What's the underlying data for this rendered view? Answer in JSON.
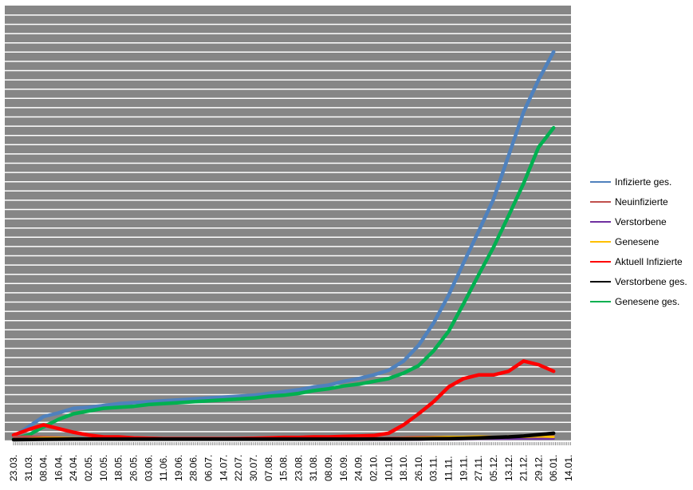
{
  "chart_data": {
    "type": "line",
    "title": "",
    "xlabel": "",
    "ylabel": "",
    "ylim": [
      0,
      47
    ],
    "grid": true,
    "y_tick_labels_shown": false,
    "plot_background": "#868686",
    "grid_color": "#ffffff",
    "legend_position": "right",
    "categories": [
      "23.03.",
      "31.03.",
      "08.04.",
      "16.04.",
      "24.04.",
      "02.05.",
      "10.05.",
      "18.05.",
      "26.05.",
      "03.06.",
      "11.06.",
      "19.06.",
      "28.06.",
      "06.07.",
      "14.07.",
      "22.07.",
      "30.07.",
      "07.08.",
      "15.08.",
      "23.08.",
      "31.08.",
      "08.09.",
      "16.09.",
      "24.09.",
      "02.10.",
      "10.10.",
      "18.10.",
      "26.10.",
      "03.11.",
      "11.11.",
      "19.11.",
      "27.11.",
      "05.12.",
      "13.12.",
      "21.12.",
      "29.12.",
      "06.01.",
      "14.01."
    ],
    "series": [
      {
        "name": "Infizierte ges.",
        "color": "#4F81BD",
        "values": [
          0.3,
          1.4,
          2.5,
          2.9,
          3.4,
          3.5,
          3.7,
          3.9,
          4.0,
          4.1,
          4.2,
          4.3,
          4.4,
          4.5,
          4.6,
          4.7,
          4.8,
          5.0,
          5.2,
          5.4,
          5.7,
          5.9,
          6.3,
          6.6,
          7.0,
          7.5,
          8.5,
          10.2,
          12.6,
          15.6,
          19.1,
          22.5,
          26.0,
          30.7,
          35.4,
          38.9,
          41.9,
          null
        ]
      },
      {
        "name": "Neuinfizierte",
        "color": "#C0504D",
        "values": [
          0.3,
          0.35,
          0.3,
          0.25,
          0.15,
          0.1,
          0.08,
          0.05,
          0.05,
          0.05,
          0.05,
          0.05,
          0.05,
          0.05,
          0.05,
          0.05,
          0.05,
          0.08,
          0.1,
          0.1,
          0.1,
          0.1,
          0.12,
          0.15,
          0.15,
          0.2,
          0.25,
          0.3,
          0.3,
          0.3,
          0.3,
          0.35,
          0.3,
          0.35,
          0.4,
          0.3,
          0.35,
          null
        ]
      },
      {
        "name": "Verstorbene",
        "color": "#7030A0",
        "values": [
          0,
          0.02,
          0.03,
          0.03,
          0.02,
          0.02,
          0.01,
          0.01,
          0.01,
          0,
          0,
          0,
          0,
          0,
          0,
          0,
          0,
          0,
          0,
          0,
          0,
          0,
          0,
          0,
          0,
          0.01,
          0.02,
          0.03,
          0.05,
          0.05,
          0.08,
          0.1,
          0.1,
          0.1,
          0.12,
          0.1,
          0.12,
          null
        ]
      },
      {
        "name": "Genesene",
        "color": "#FFC000",
        "values": [
          0,
          0.1,
          0.2,
          0.2,
          0.15,
          0.1,
          0.08,
          0.05,
          0.05,
          0.04,
          0.03,
          0.03,
          0.03,
          0.03,
          0.03,
          0.03,
          0.03,
          0.05,
          0.05,
          0.06,
          0.06,
          0.07,
          0.08,
          0.1,
          0.1,
          0.12,
          0.15,
          0.2,
          0.25,
          0.3,
          0.3,
          0.35,
          0.3,
          0.35,
          0.3,
          0.35,
          0.3,
          null
        ]
      },
      {
        "name": "Aktuell Infizierte",
        "color": "#FF0000",
        "values": [
          0.5,
          1.1,
          1.6,
          1.2,
          0.8,
          0.5,
          0.3,
          0.3,
          0.2,
          0.15,
          0.1,
          0.1,
          0.1,
          0.1,
          0.1,
          0.12,
          0.15,
          0.2,
          0.25,
          0.25,
          0.3,
          0.3,
          0.35,
          0.4,
          0.45,
          0.7,
          1.6,
          2.8,
          4.1,
          5.7,
          6.6,
          7.0,
          7.0,
          7.4,
          8.5,
          8.1,
          7.4,
          null
        ]
      },
      {
        "name": "Verstorbene ges.",
        "color": "#000000",
        "values": [
          0,
          0.02,
          0.04,
          0.05,
          0.06,
          0.06,
          0.06,
          0.06,
          0.06,
          0.06,
          0.06,
          0.06,
          0.06,
          0.06,
          0.06,
          0.06,
          0.07,
          0.07,
          0.07,
          0.07,
          0.07,
          0.07,
          0.07,
          0.07,
          0.08,
          0.08,
          0.08,
          0.09,
          0.1,
          0.12,
          0.15,
          0.2,
          0.25,
          0.3,
          0.4,
          0.55,
          0.7,
          null
        ]
      },
      {
        "name": "Genesene ges.",
        "color": "#00B050",
        "values": [
          0.1,
          0.5,
          1.4,
          2.2,
          2.8,
          3.1,
          3.4,
          3.5,
          3.6,
          3.8,
          3.9,
          4.0,
          4.1,
          4.2,
          4.3,
          4.4,
          4.5,
          4.7,
          4.8,
          5.0,
          5.3,
          5.5,
          5.8,
          6.0,
          6.3,
          6.6,
          7.2,
          8.0,
          9.6,
          11.7,
          14.7,
          17.8,
          20.8,
          24.2,
          27.7,
          31.6,
          33.7,
          null
        ]
      }
    ]
  }
}
